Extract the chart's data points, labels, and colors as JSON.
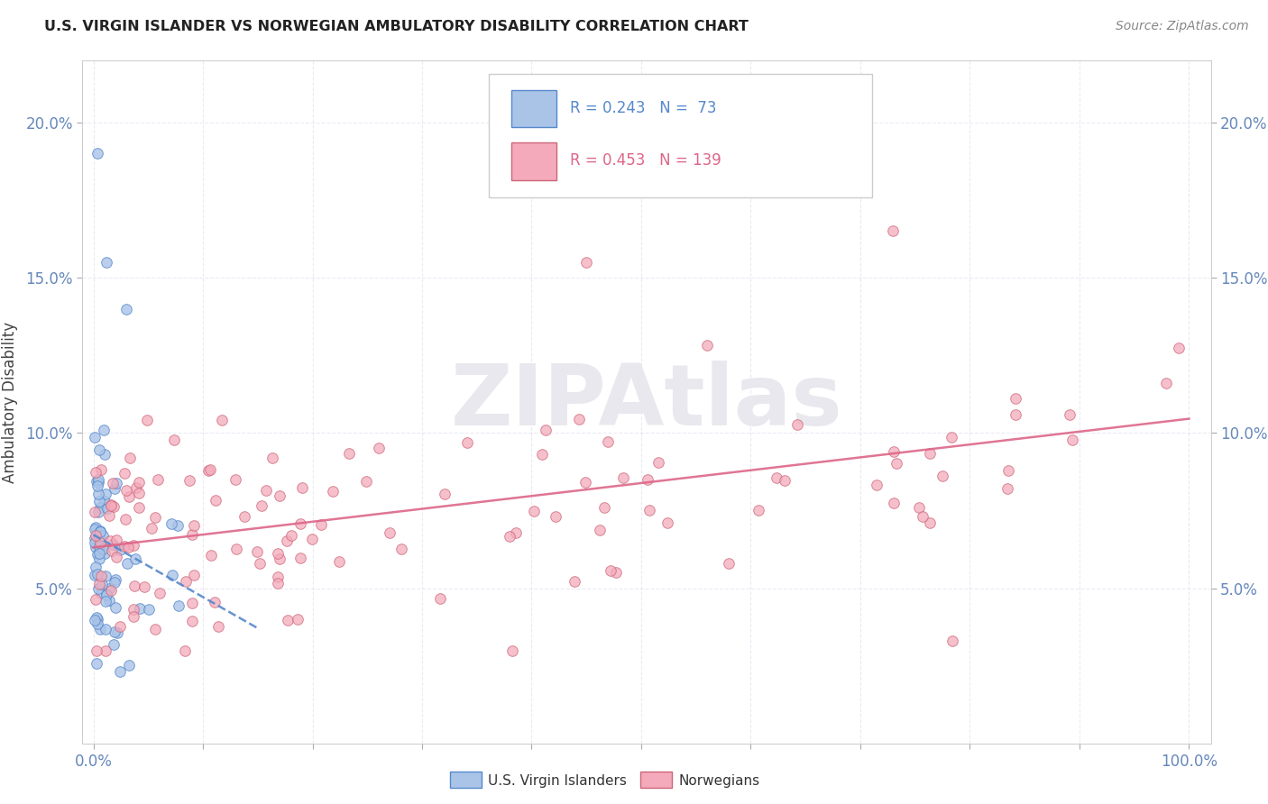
{
  "title": "U.S. VIRGIN ISLANDER VS NORWEGIAN AMBULATORY DISABILITY CORRELATION CHART",
  "source": "Source: ZipAtlas.com",
  "ylabel": "Ambulatory Disability",
  "legend_label1": "U.S. Virgin Islanders",
  "legend_label2": "Norwegians",
  "R1": 0.243,
  "N1": 73,
  "R2": 0.453,
  "N2": 139,
  "color1": "#aac4e8",
  "color2": "#f4aabb",
  "trendline1_color": "#5588cc",
  "trendline2_color": "#dd6688",
  "watermark_text": "ZIPAtlas",
  "watermark_color": "#e8e8ee",
  "bg_color": "#ffffff",
  "grid_color": "#ddddee",
  "tick_color": "#6688bb",
  "title_color": "#222222",
  "source_color": "#888888",
  "ylabel_color": "#444444",
  "legend_border_color": "#cccccc",
  "ymin": 0.0,
  "ymax": 0.22,
  "xmin": 0.0,
  "xmax": 1.0
}
